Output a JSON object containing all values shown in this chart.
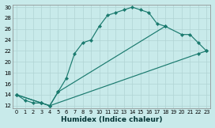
{
  "xlabel": "Humidex (Indice chaleur)",
  "bg_color": "#c8eaea",
  "line_color": "#1a7a6e",
  "grid_color": "#b0d4d4",
  "xlim": [
    -0.5,
    23.5
  ],
  "ylim": [
    11.5,
    30.5
  ],
  "line1_x": [
    0,
    1,
    2,
    3,
    4,
    5,
    6,
    7,
    8,
    9,
    10,
    11,
    12,
    13,
    14,
    15,
    16,
    17,
    18
  ],
  "line1_y": [
    14,
    13,
    12.5,
    12.5,
    12,
    14.5,
    17,
    21.5,
    23.5,
    24,
    26.5,
    28.5,
    29,
    29.5,
    30,
    29.5,
    29,
    27,
    26.5
  ],
  "line2_x": [
    0,
    3,
    4,
    5,
    18,
    20,
    21,
    22,
    23
  ],
  "line2_y": [
    14,
    12.5,
    12,
    14.5,
    26.5,
    25,
    25,
    23.5,
    22
  ],
  "line3_x": [
    0,
    3,
    4,
    22,
    23
  ],
  "line3_y": [
    14,
    12.5,
    12,
    21.5,
    22
  ]
}
